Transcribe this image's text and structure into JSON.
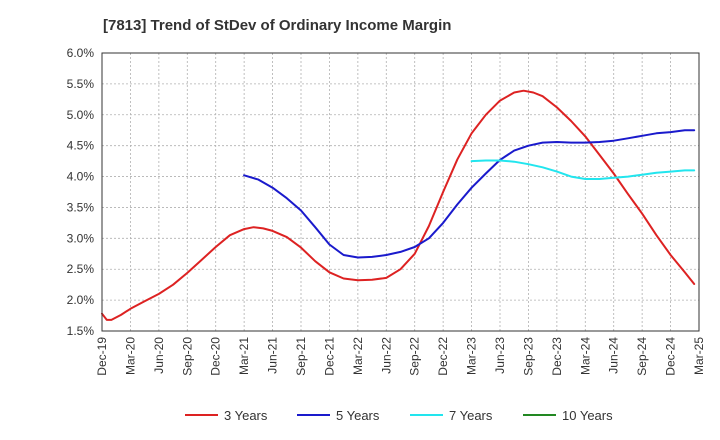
{
  "chart_data": {
    "type": "line",
    "title": "[7813]  Trend of StDev of Ordinary Income Margin",
    "xlabel": "",
    "ylabel": "",
    "x": [
      "Dec-19",
      "Mar-20",
      "Jun-20",
      "Sep-20",
      "Dec-20",
      "Mar-21",
      "Jun-21",
      "Sep-21",
      "Dec-21",
      "Mar-22",
      "Jun-22",
      "Sep-22",
      "Dec-22",
      "Mar-23",
      "Jun-23",
      "Sep-23",
      "Dec-23",
      "Mar-24",
      "Jun-24",
      "Sep-24",
      "Dec-24",
      "Mar-25"
    ],
    "y_ticks": [
      "1.5%",
      "2.0%",
      "2.5%",
      "3.0%",
      "3.5%",
      "4.0%",
      "4.5%",
      "5.0%",
      "5.5%",
      "6.0%"
    ],
    "ylim": [
      1.5,
      6.0
    ],
    "grid": true,
    "legend_position": "bottom",
    "series": [
      {
        "name": "3 Years",
        "color": "#dd2222",
        "points": [
          [
            0,
            1.78
          ],
          [
            0.17,
            1.68
          ],
          [
            0.33,
            1.68
          ],
          [
            0.67,
            1.76
          ],
          [
            1,
            1.86
          ],
          [
            1.5,
            1.98
          ],
          [
            2,
            2.1
          ],
          [
            2.5,
            2.25
          ],
          [
            3,
            2.44
          ],
          [
            3.5,
            2.65
          ],
          [
            4,
            2.86
          ],
          [
            4.5,
            3.05
          ],
          [
            5,
            3.15
          ],
          [
            5.33,
            3.18
          ],
          [
            5.67,
            3.16
          ],
          [
            6,
            3.12
          ],
          [
            6.5,
            3.02
          ],
          [
            7,
            2.85
          ],
          [
            7.5,
            2.63
          ],
          [
            8,
            2.45
          ],
          [
            8.5,
            2.35
          ],
          [
            9,
            2.32
          ],
          [
            9.5,
            2.33
          ],
          [
            10,
            2.36
          ],
          [
            10.5,
            2.5
          ],
          [
            11,
            2.75
          ],
          [
            11.5,
            3.2
          ],
          [
            12,
            3.75
          ],
          [
            12.5,
            4.28
          ],
          [
            13,
            4.7
          ],
          [
            13.5,
            5.0
          ],
          [
            14,
            5.23
          ],
          [
            14.5,
            5.36
          ],
          [
            14.83,
            5.39
          ],
          [
            15.17,
            5.36
          ],
          [
            15.5,
            5.3
          ],
          [
            16,
            5.12
          ],
          [
            16.5,
            4.9
          ],
          [
            17,
            4.65
          ],
          [
            17.5,
            4.35
          ],
          [
            18,
            4.05
          ],
          [
            18.5,
            3.72
          ],
          [
            19,
            3.4
          ],
          [
            19.5,
            3.05
          ],
          [
            20,
            2.73
          ],
          [
            20.5,
            2.45
          ],
          [
            20.83,
            2.26
          ]
        ]
      },
      {
        "name": "5 Years",
        "color": "#1a1acc",
        "points": [
          [
            5,
            4.02
          ],
          [
            5.5,
            3.95
          ],
          [
            6,
            3.82
          ],
          [
            6.5,
            3.65
          ],
          [
            7,
            3.45
          ],
          [
            7.5,
            3.18
          ],
          [
            8,
            2.9
          ],
          [
            8.5,
            2.73
          ],
          [
            9,
            2.69
          ],
          [
            9.5,
            2.7
          ],
          [
            10,
            2.73
          ],
          [
            10.5,
            2.78
          ],
          [
            11,
            2.86
          ],
          [
            11.5,
            3.0
          ],
          [
            12,
            3.25
          ],
          [
            12.5,
            3.55
          ],
          [
            13,
            3.82
          ],
          [
            13.5,
            4.05
          ],
          [
            14,
            4.27
          ],
          [
            14.5,
            4.42
          ],
          [
            15,
            4.5
          ],
          [
            15.5,
            4.55
          ],
          [
            16,
            4.56
          ],
          [
            16.5,
            4.55
          ],
          [
            17,
            4.55
          ],
          [
            17.5,
            4.56
          ],
          [
            18,
            4.58
          ],
          [
            18.5,
            4.62
          ],
          [
            19,
            4.66
          ],
          [
            19.5,
            4.7
          ],
          [
            20,
            4.72
          ],
          [
            20.5,
            4.75
          ],
          [
            20.83,
            4.75
          ]
        ]
      },
      {
        "name": "7 Years",
        "color": "#22e5ee",
        "points": [
          [
            13,
            4.25
          ],
          [
            13.5,
            4.26
          ],
          [
            14,
            4.26
          ],
          [
            14.5,
            4.24
          ],
          [
            15,
            4.2
          ],
          [
            15.5,
            4.15
          ],
          [
            16,
            4.08
          ],
          [
            16.5,
            4.0
          ],
          [
            17,
            3.96
          ],
          [
            17.5,
            3.96
          ],
          [
            18,
            3.98
          ],
          [
            18.5,
            4.0
          ],
          [
            19,
            4.03
          ],
          [
            19.5,
            4.06
          ],
          [
            20,
            4.08
          ],
          [
            20.5,
            4.1
          ],
          [
            20.83,
            4.1
          ]
        ]
      },
      {
        "name": "10 Years",
        "color": "#228822",
        "points": []
      }
    ]
  }
}
